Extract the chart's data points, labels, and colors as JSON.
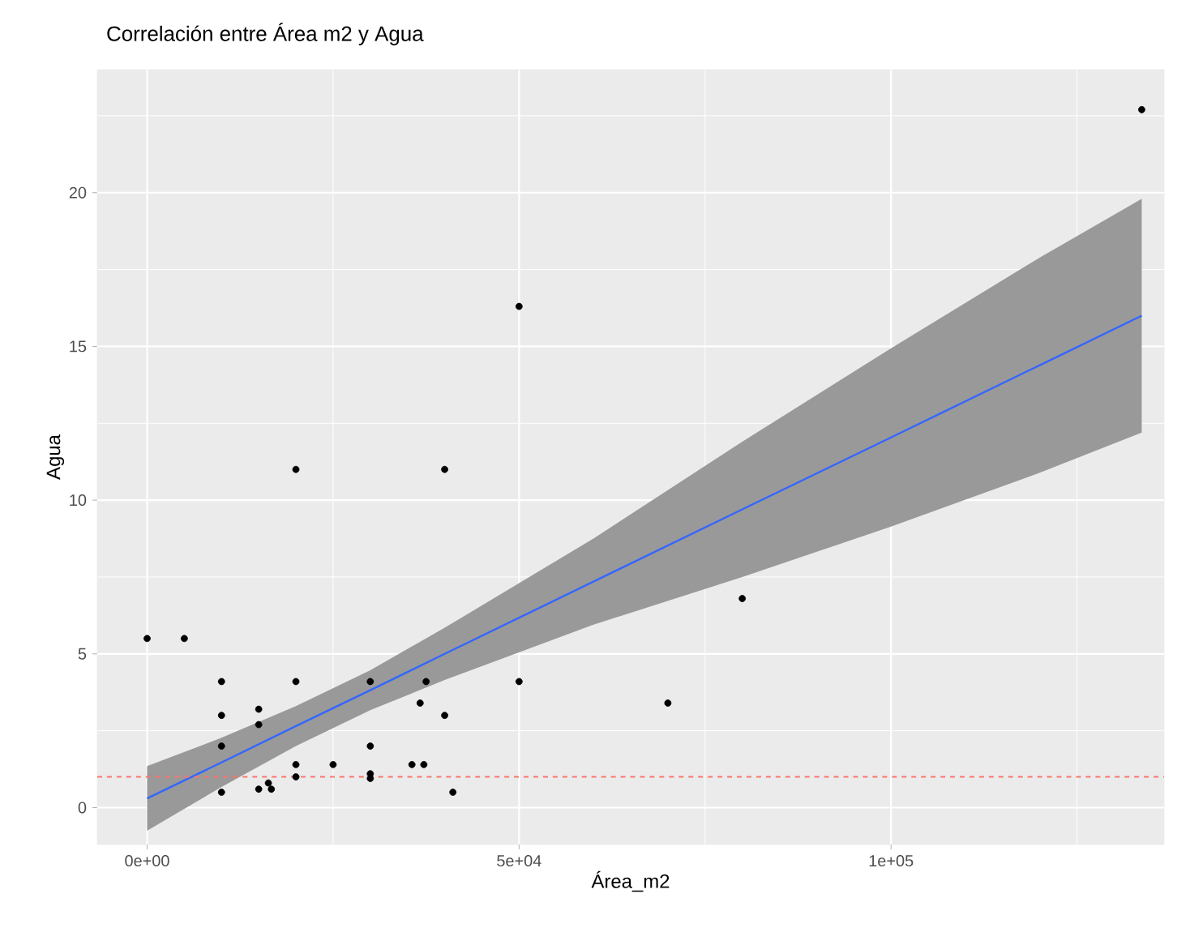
{
  "chart_data": {
    "type": "scatter",
    "title": "Correlación entre Área m2 y Agua",
    "xlabel": "Área_m2",
    "ylabel": "Agua",
    "xlim": [
      -6700,
      136700
    ],
    "ylim": [
      -1.2,
      24
    ],
    "xticks": [
      {
        "value": 0,
        "label": "0e+00"
      },
      {
        "value": 50000,
        "label": "5e+04"
      },
      {
        "value": 100000,
        "label": "1e+05"
      }
    ],
    "yticks": [
      0,
      5,
      10,
      15,
      20
    ],
    "grid": true,
    "series": [
      {
        "color": "#000000",
        "marker": "circle",
        "x": [
          0,
          5000,
          10000,
          20000,
          10000,
          15000,
          15000,
          10000,
          20000,
          20000,
          15000,
          16300,
          16700,
          25000,
          30000,
          30000,
          30000,
          35600,
          37200,
          36700,
          40000,
          41100,
          50000,
          50000,
          70000,
          80000,
          20000,
          40000,
          133700,
          30000,
          37500,
          10000
        ],
        "values": [
          5.5,
          5.5,
          4.1,
          4.1,
          3.0,
          3.2,
          2.7,
          0.5,
          1.4,
          1.0,
          0.6,
          0.8,
          0.6,
          1.4,
          2.0,
          1.1,
          0.95,
          1.4,
          1.4,
          3.4,
          3.0,
          0.5,
          4.1,
          16.3,
          3.4,
          6.8,
          11.0,
          11.0,
          22.7,
          4.1,
          4.1,
          2.0
        ]
      },
      {
        "type": "line",
        "color": "#3366ff",
        "marker": "none",
        "line_style": "solid",
        "x": [
          0,
          10000,
          20000,
          30000,
          40000,
          60000,
          80000,
          100000,
          120000,
          133700
        ],
        "values": [
          0.3,
          1.47,
          2.65,
          3.82,
          5.0,
          7.35,
          9.7,
          12.04,
          14.39,
          16.0
        ],
        "lower": [
          -0.75,
          0.67,
          2.0,
          3.17,
          4.15,
          5.95,
          7.5,
          9.14,
          10.89,
          12.2
        ],
        "upper": [
          1.35,
          2.27,
          3.3,
          4.47,
          5.85,
          8.75,
          11.9,
          14.94,
          17.89,
          19.8
        ]
      }
    ],
    "ref_lines": [
      {
        "axis": "y",
        "value": 1,
        "color": "#f8766d",
        "line_style": "dashed"
      }
    ]
  }
}
